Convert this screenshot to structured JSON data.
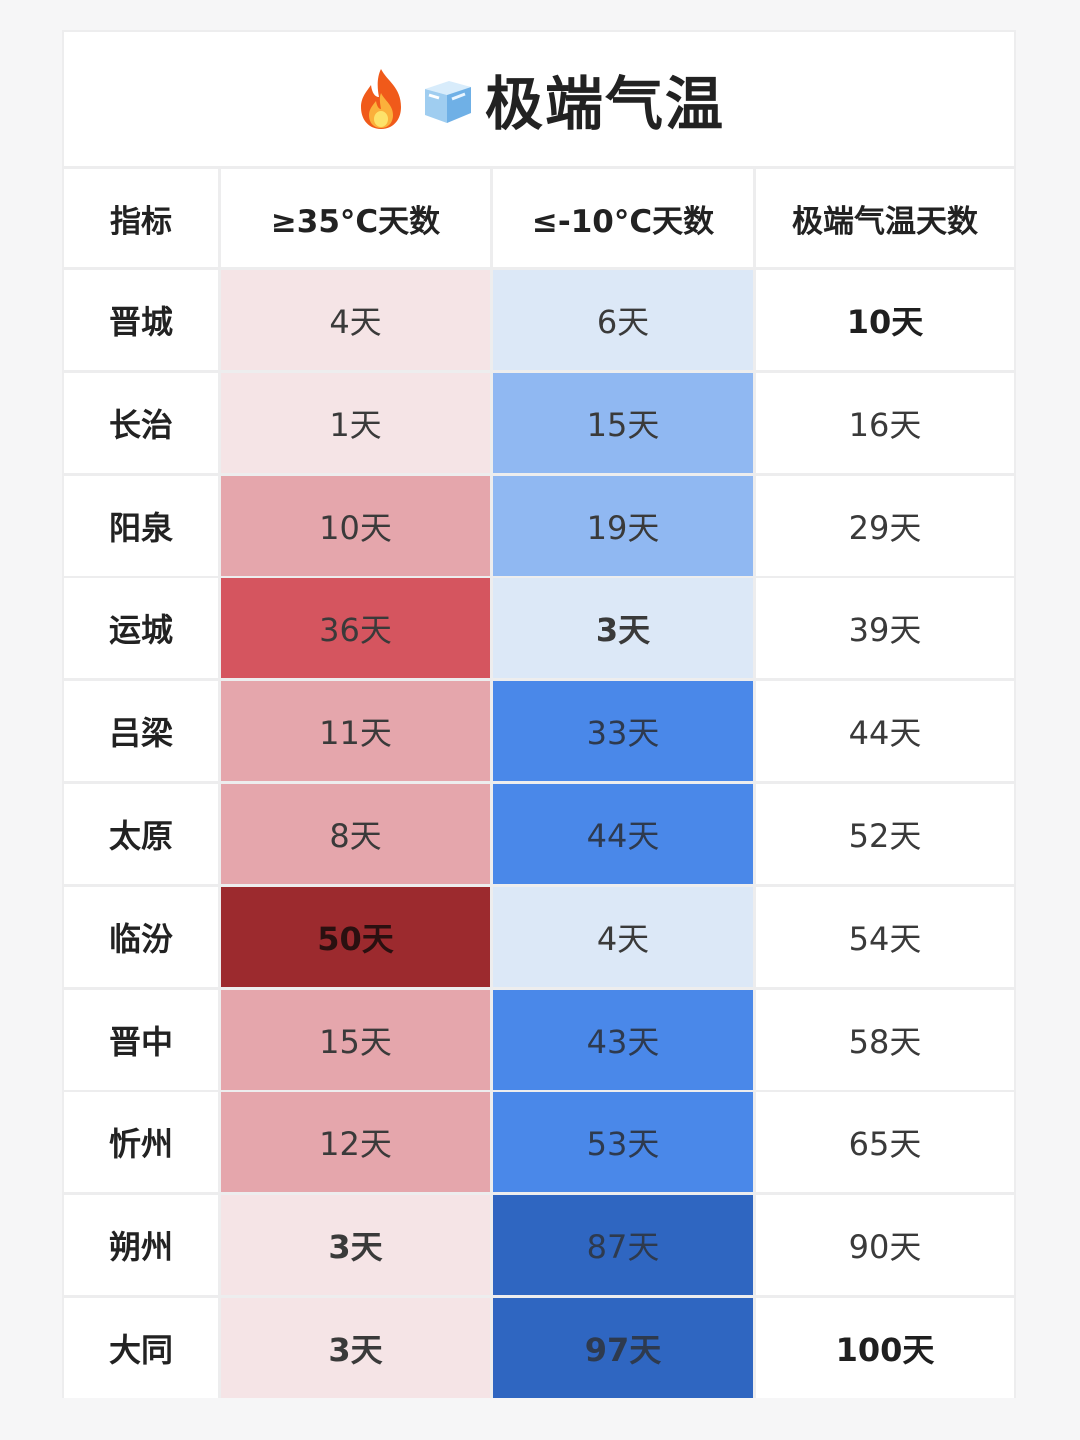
{
  "title": "极端气温",
  "icons": [
    "fire-icon",
    "ice-cube-icon"
  ],
  "headers": [
    "指标",
    "≥35°C天数",
    "≤-10°C天数",
    "极端气温天数"
  ],
  "colors": {
    "hot_light": "#f5e4e6",
    "hot_mid": "#e5a6ac",
    "hot_strong": "#d5555f",
    "hot_max": "#9c2a2e",
    "cold_light": "#dce8f7",
    "cold_mid": "#90b8f2",
    "cold_strong": "#4a88e9",
    "cold_max": "#2f66c1"
  },
  "rows": [
    {
      "city": "晋城",
      "hot": "4天",
      "cold": "6天",
      "total": "10天",
      "hot_level": "light",
      "cold_level": "light",
      "bold": [
        false,
        false,
        true
      ]
    },
    {
      "city": "长治",
      "hot": "1天",
      "cold": "15天",
      "total": "16天",
      "hot_level": "light",
      "cold_level": "mid",
      "bold": [
        false,
        false,
        false
      ]
    },
    {
      "city": "阳泉",
      "hot": "10天",
      "cold": "19天",
      "total": "29天",
      "hot_level": "mid",
      "cold_level": "mid",
      "bold": [
        false,
        false,
        false
      ]
    },
    {
      "city": "运城",
      "hot": "36天",
      "cold": "3天",
      "total": "39天",
      "hot_level": "strong",
      "cold_level": "light",
      "bold": [
        false,
        true,
        false
      ]
    },
    {
      "city": "吕梁",
      "hot": "11天",
      "cold": "33天",
      "total": "44天",
      "hot_level": "mid",
      "cold_level": "strong",
      "bold": [
        false,
        false,
        false
      ]
    },
    {
      "city": "太原",
      "hot": "8天",
      "cold": "44天",
      "total": "52天",
      "hot_level": "mid",
      "cold_level": "strong",
      "bold": [
        false,
        false,
        false
      ]
    },
    {
      "city": "临汾",
      "hot": "50天",
      "cold": "4天",
      "total": "54天",
      "hot_level": "max",
      "cold_level": "light",
      "bold": [
        true,
        false,
        false
      ]
    },
    {
      "city": "晋中",
      "hot": "15天",
      "cold": "43天",
      "total": "58天",
      "hot_level": "mid",
      "cold_level": "strong",
      "bold": [
        false,
        false,
        false
      ]
    },
    {
      "city": "忻州",
      "hot": "12天",
      "cold": "53天",
      "total": "65天",
      "hot_level": "mid",
      "cold_level": "strong",
      "bold": [
        false,
        false,
        false
      ]
    },
    {
      "city": "朔州",
      "hot": "3天",
      "cold": "87天",
      "total": "90天",
      "hot_level": "light",
      "cold_level": "max",
      "bold": [
        true,
        false,
        false
      ]
    },
    {
      "city": "大同",
      "hot": "3天",
      "cold": "97天",
      "total": "100天",
      "hot_level": "light",
      "cold_level": "max",
      "bold": [
        true,
        true,
        true
      ]
    }
  ]
}
